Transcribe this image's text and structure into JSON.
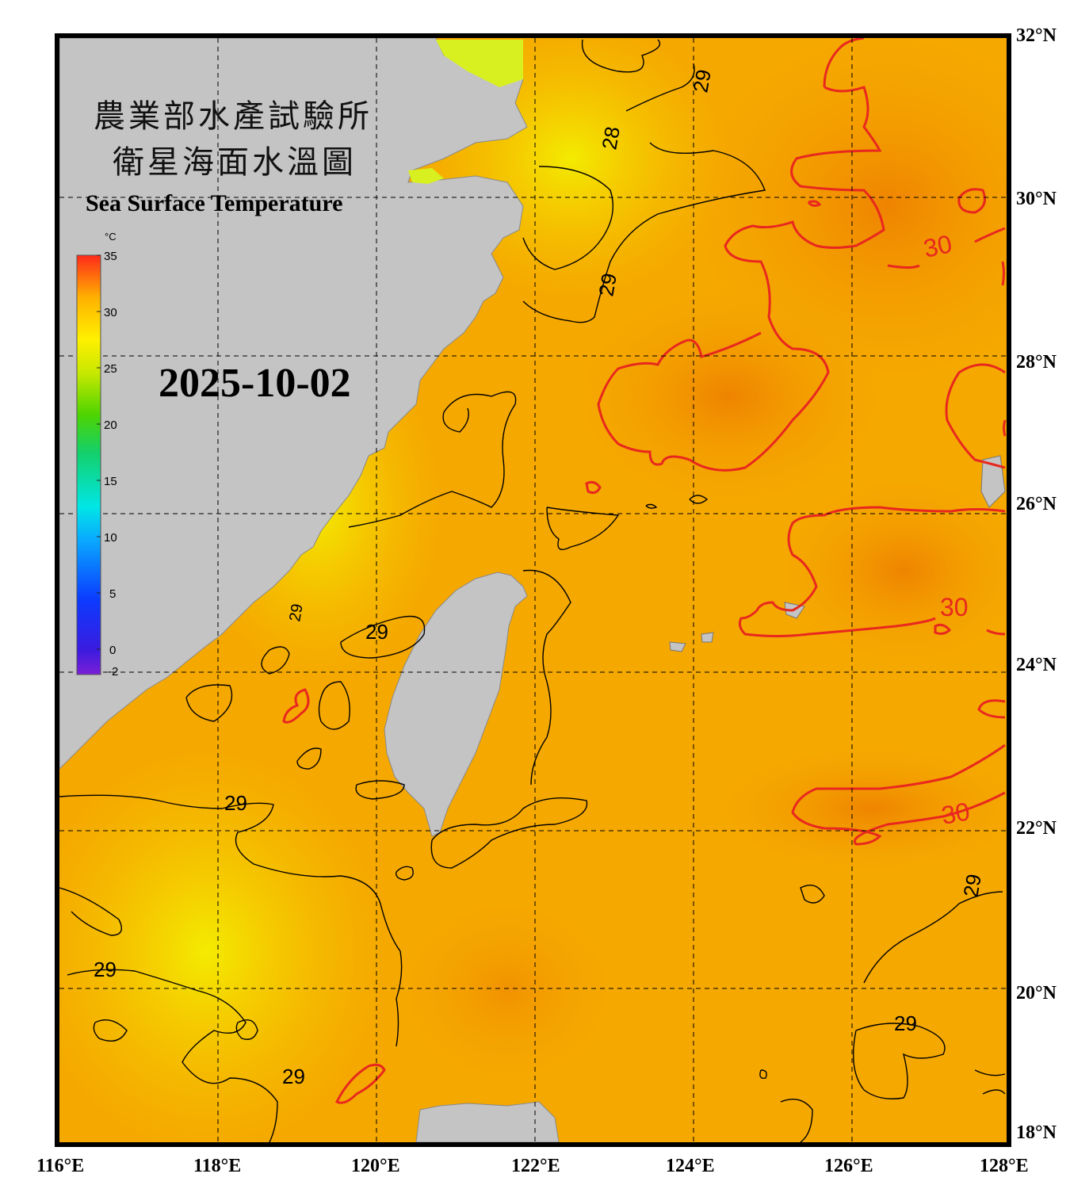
{
  "title": {
    "line1": "農業部水產試驗所",
    "line2": "衛星海面水溫圖",
    "english": "Sea Surface Temperature"
  },
  "date": "2025-10-02",
  "colorbar": {
    "unit": "°C",
    "ticks": [
      "35",
      "30",
      "25",
      "20",
      "15",
      "10",
      "5",
      "0",
      "-2"
    ]
  },
  "latitude_labels": [
    "32°N",
    "30°N",
    "28°N",
    "26°N",
    "24°N",
    "22°N",
    "20°N",
    "18°N"
  ],
  "longitude_labels": [
    "116°E",
    "118°E",
    "120°E",
    "122°E",
    "124°E",
    "126°E",
    "128°E"
  ],
  "contour_labels": {
    "black": [
      "29",
      "28",
      "29",
      "29",
      "29",
      "29",
      "29",
      "29",
      "29",
      "29"
    ],
    "red": [
      "30",
      "30",
      "30"
    ]
  },
  "colors": {
    "land": "#c4c4c4",
    "sea_warm": "#f5a300",
    "sea_hot": "#f08a00",
    "sea_cool": "#f6e400",
    "contour_29": "#000000",
    "contour_30": "#e8281e",
    "frame": "#000000"
  }
}
